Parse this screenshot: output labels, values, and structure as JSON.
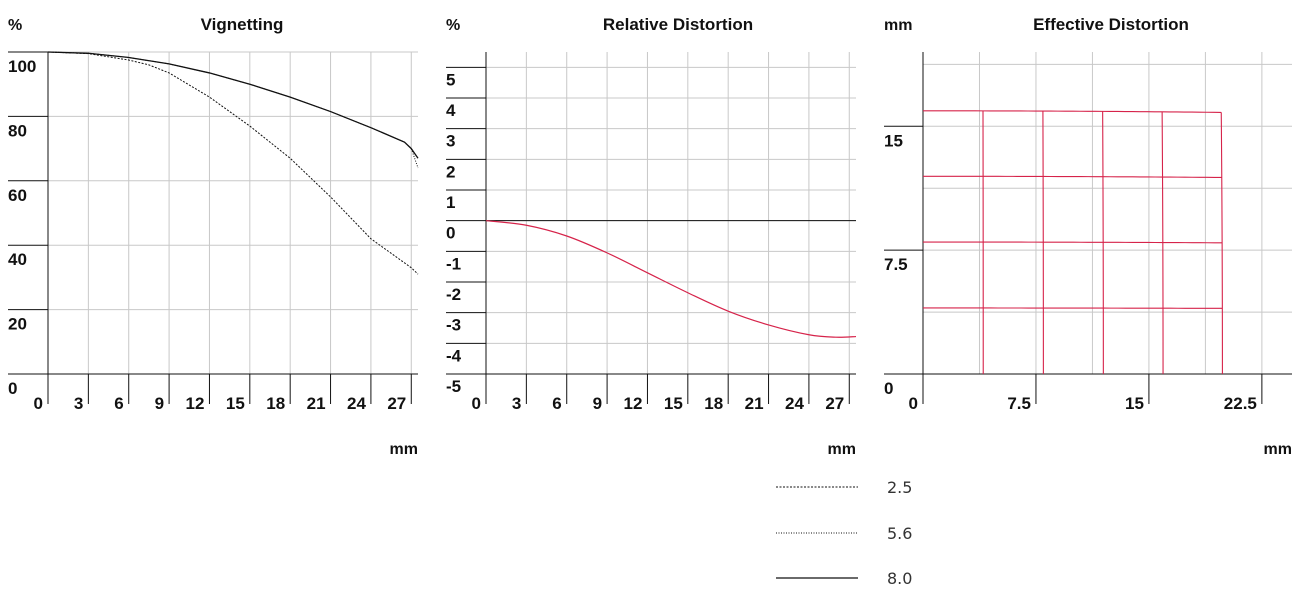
{
  "chart_data": [
    {
      "type": "line",
      "title": "Vignetting",
      "y_unit": "%",
      "x_unit": "mm",
      "xlim": [
        0,
        27.5
      ],
      "ylim": [
        0,
        100
      ],
      "x_ticks": [
        "0",
        "3",
        "6",
        "9",
        "12",
        "15",
        "18",
        "21",
        "24",
        "27"
      ],
      "y_ticks": [
        "0",
        "20",
        "40",
        "60",
        "80",
        "100"
      ],
      "grid": true,
      "series": [
        {
          "name": "2.5",
          "style": "dashed",
          "x": [
            0,
            3,
            6,
            7.5,
            9,
            12,
            15,
            18,
            21,
            24,
            27,
            27.5
          ],
          "y": [
            100,
            99.5,
            97.5,
            96,
            93.5,
            86,
            77,
            67,
            55,
            42,
            33,
            31
          ]
        },
        {
          "name": "5.6",
          "style": "dotted",
          "x": [
            0,
            3,
            6,
            9,
            12,
            15,
            18,
            21,
            24,
            26.5,
            27,
            27.5
          ],
          "y": [
            100,
            99.6,
            98.3,
            96.3,
            93.5,
            90,
            86,
            81.5,
            76.5,
            72,
            70,
            64
          ]
        },
        {
          "name": "8.0",
          "style": "solid",
          "x": [
            0,
            3,
            6,
            9,
            12,
            15,
            18,
            21,
            24,
            26.5,
            27,
            27.5
          ],
          "y": [
            100,
            99.6,
            98.3,
            96.3,
            93.5,
            90,
            86,
            81.5,
            76.5,
            72,
            70,
            67
          ]
        }
      ]
    },
    {
      "type": "line",
      "title": "Relative Distortion",
      "y_unit": "%",
      "x_unit": "mm",
      "xlim": [
        0,
        27.5
      ],
      "ylim": [
        -5,
        5.5
      ],
      "x_ticks": [
        "0",
        "3",
        "6",
        "9",
        "12",
        "15",
        "18",
        "21",
        "24",
        "27"
      ],
      "y_ticks": [
        "-5",
        "-4",
        "-3",
        "-2",
        "-1",
        "0",
        "1",
        "2",
        "3",
        "4",
        "5"
      ],
      "grid": true,
      "series": [
        {
          "color": "#d6234a",
          "x": [
            0,
            3,
            6,
            9,
            12,
            15,
            18,
            21,
            24,
            26,
            27.5
          ],
          "y": [
            0,
            -0.15,
            -0.5,
            -1.05,
            -1.7,
            -2.35,
            -2.95,
            -3.4,
            -3.72,
            -3.8,
            -3.78
          ]
        }
      ]
    },
    {
      "type": "line",
      "title": "Effective Distortion",
      "y_unit": "mm",
      "x_unit": "mm",
      "xlim": [
        0,
        24.5
      ],
      "ylim": [
        0,
        19.5
      ],
      "x_ticks": [
        "0",
        "7.5",
        "15",
        "22.5"
      ],
      "y_ticks": [
        "0",
        "7.5",
        "15"
      ],
      "grid": true,
      "distorted_grid_color": "#d6234a",
      "vertical_lines_x": [
        4,
        8,
        12,
        16,
        20
      ],
      "horizontal_lines_y": [
        4,
        8,
        12,
        16
      ],
      "distortion_percent_max": -3.8
    }
  ],
  "legend": {
    "items": [
      {
        "label": "2.5",
        "style": "dashed"
      },
      {
        "label": "5.6",
        "style": "dotted"
      },
      {
        "label": "8.0",
        "style": "solid"
      }
    ]
  },
  "colors": {
    "grid": "#c8c8c8",
    "axis": "#111111",
    "distortion": "#d6234a"
  }
}
